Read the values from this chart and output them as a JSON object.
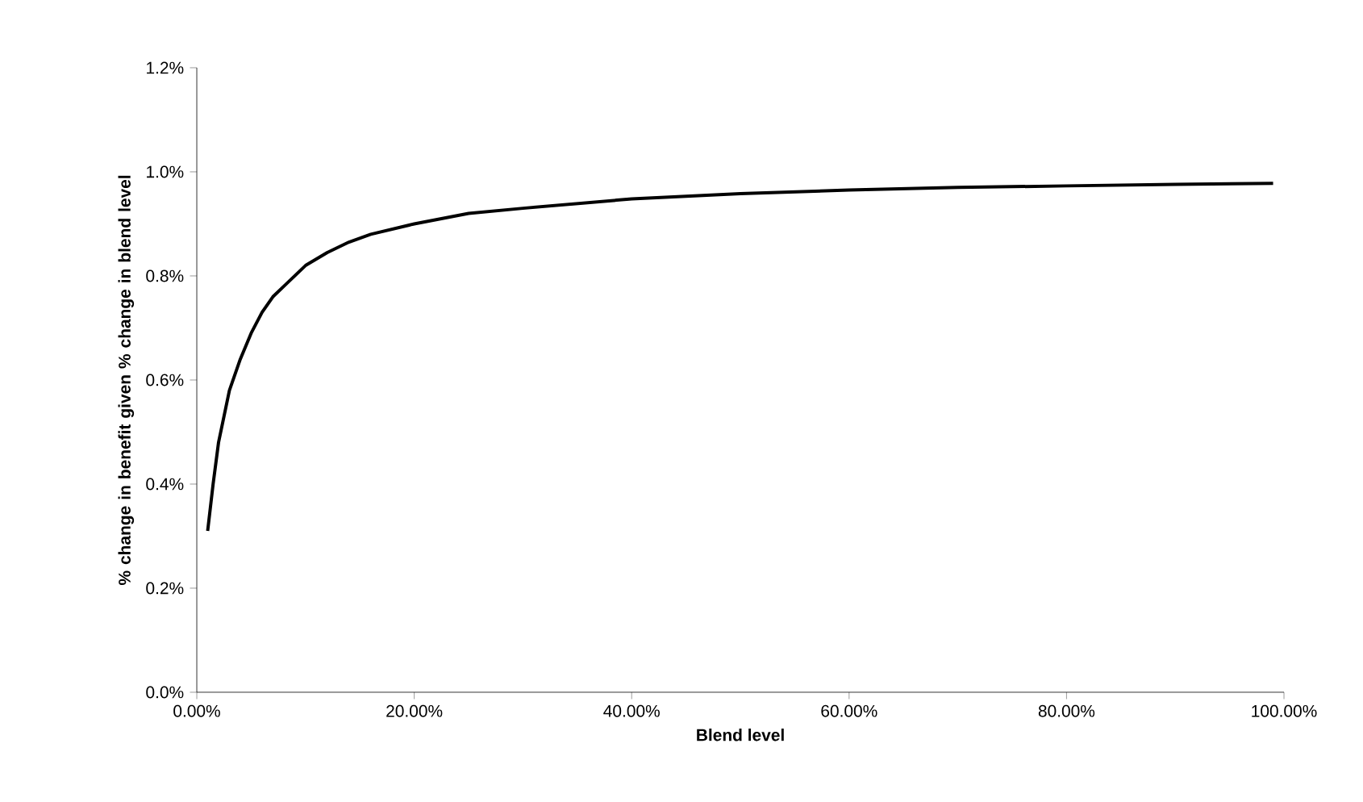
{
  "chart_data": {
    "type": "line",
    "xlabel": "Blend level",
    "ylabel": "% change in benefit given % change in blend level",
    "x": [
      1,
      1.5,
      2,
      3,
      4,
      5,
      6,
      7,
      8,
      10,
      12,
      14,
      16,
      20,
      25,
      30,
      40,
      50,
      60,
      70,
      80,
      90,
      99
    ],
    "series": [
      {
        "color": "#000000",
        "values": [
          0.31,
          0.4,
          0.48,
          0.58,
          0.64,
          0.69,
          0.73,
          0.76,
          0.78,
          0.82,
          0.845,
          0.865,
          0.88,
          0.9,
          0.92,
          0.93,
          0.948,
          0.958,
          0.965,
          0.97,
          0.973,
          0.976,
          0.978
        ]
      }
    ],
    "xlim": [
      0,
      100
    ],
    "ylim": [
      0,
      1.2
    ],
    "xticks": [
      {
        "value": 0,
        "label": "0.00%"
      },
      {
        "value": 20,
        "label": "20.00%"
      },
      {
        "value": 40,
        "label": "40.00%"
      },
      {
        "value": 60,
        "label": "60.00%"
      },
      {
        "value": 80,
        "label": "80.00%"
      },
      {
        "value": 100,
        "label": "100.00%"
      }
    ],
    "yticks": [
      {
        "value": 0,
        "label": "0.0%"
      },
      {
        "value": 0.2,
        "label": "0.2%"
      },
      {
        "value": 0.4,
        "label": "0.4%"
      },
      {
        "value": 0.6,
        "label": "0.6%"
      },
      {
        "value": 0.8,
        "label": "0.8%"
      },
      {
        "value": 1.0,
        "label": "1.0%"
      },
      {
        "value": 1.2,
        "label": "1.2%"
      }
    ],
    "grid": false,
    "line_style": "solid"
  }
}
